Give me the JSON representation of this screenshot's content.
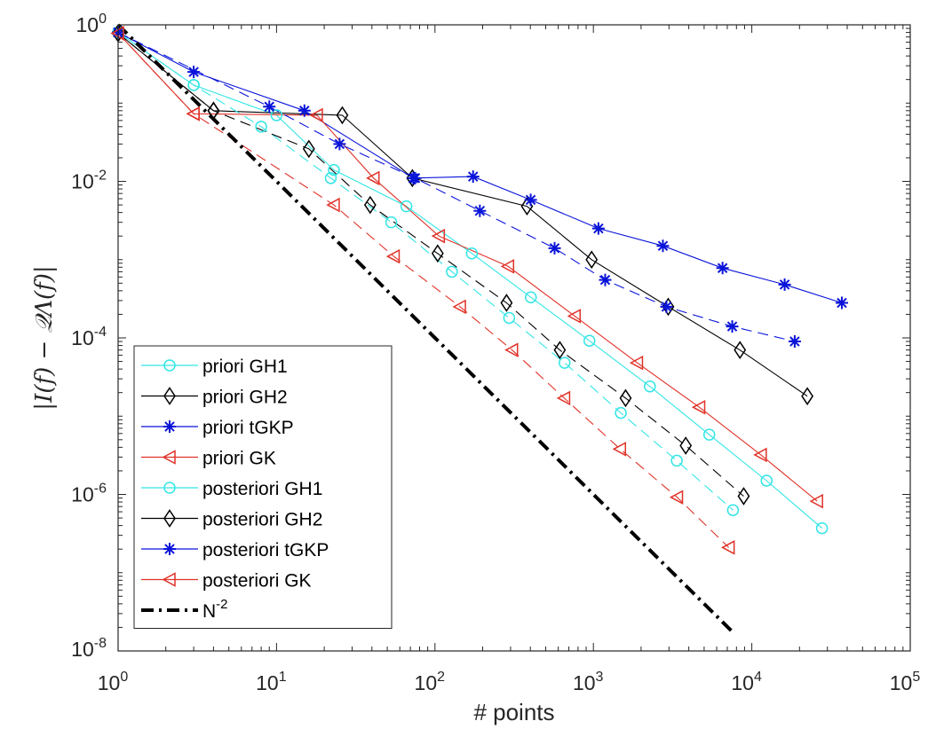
{
  "chart_data": {
    "type": "line",
    "xlabel": "# points",
    "ylabel": "|I(f) − 𝒬Λ(f)|",
    "xscale": "log",
    "yscale": "log",
    "xlim": [
      1,
      100000
    ],
    "ylim": [
      1e-08,
      1
    ],
    "grid": false,
    "legend_position": "bottom-left",
    "x_ticks": [
      {
        "value": 1,
        "base": "10",
        "exp": "0"
      },
      {
        "value": 10,
        "base": "10",
        "exp": "1"
      },
      {
        "value": 100,
        "base": "10",
        "exp": "2"
      },
      {
        "value": 1000,
        "base": "10",
        "exp": "3"
      },
      {
        "value": 10000,
        "base": "10",
        "exp": "4"
      },
      {
        "value": 100000,
        "base": "10",
        "exp": "5"
      }
    ],
    "y_ticks": [
      {
        "value": 1,
        "base": "10",
        "exp": "0"
      },
      {
        "value": 0.01,
        "base": "10",
        "exp": "-2"
      },
      {
        "value": 0.0001,
        "base": "10",
        "exp": "-4"
      },
      {
        "value": 1e-06,
        "base": "10",
        "exp": "-6"
      },
      {
        "value": 1e-08,
        "base": "10",
        "exp": "-8"
      }
    ],
    "series": [
      {
        "name": "priori GH1",
        "color": "#33e5e5",
        "marker": "circle",
        "dash": "solid",
        "x": [
          1,
          3,
          10,
          23,
          66,
          171,
          403,
          944,
          2273,
          5389,
          12397,
          27721
        ],
        "y": [
          0.8,
          0.17,
          0.07,
          0.014,
          0.0048,
          0.0012,
          0.00033,
          9.2e-05,
          2.4e-05,
          5.8e-06,
          1.5e-06,
          3.7e-07
        ]
      },
      {
        "name": "priori GH2",
        "color": "#000000",
        "marker": "diamond",
        "dash": "solid",
        "x": [
          1,
          4,
          26,
          72,
          381,
          975,
          2968,
          8414,
          22405
        ],
        "y": [
          0.78,
          0.08,
          0.07,
          0.011,
          0.0048,
          0.001,
          0.00025,
          7e-05,
          1.8e-05
        ]
      },
      {
        "name": "priori tGKP",
        "color": "#0a14d9",
        "marker": "star",
        "dash": "solid",
        "x": [
          1,
          3,
          15,
          73,
          174,
          402,
          1076,
          2746,
          6534,
          16117,
          37005
        ],
        "y": [
          0.8,
          0.25,
          0.08,
          0.011,
          0.0115,
          0.0058,
          0.0025,
          0.0015,
          0.00078,
          0.00048,
          0.00028
        ]
      },
      {
        "name": "priori GK",
        "color": "#e03228",
        "marker": "triangle-left",
        "dash": "solid",
        "x": [
          1,
          3,
          18,
          41,
          106,
          290,
          763,
          1889,
          4665,
          11413,
          25845
        ],
        "y": [
          0.78,
          0.073,
          0.07,
          0.011,
          0.002,
          0.00082,
          0.00019,
          4.8e-05,
          1.3e-05,
          3.2e-06,
          8.2e-07
        ]
      },
      {
        "name": "posteriori GH1",
        "color": "#33e5e5",
        "marker": "circle",
        "dash": "dashed",
        "x": [
          1,
          3,
          8,
          22,
          53,
          128,
          294,
          658,
          1490,
          3362,
          7604
        ],
        "y": [
          0.8,
          0.17,
          0.05,
          0.011,
          0.003,
          0.0007,
          0.00018,
          4.8e-05,
          1.1e-05,
          2.7e-06,
          6.3e-07
        ]
      },
      {
        "name": "posteriori GH2",
        "color": "#000000",
        "marker": "diamond",
        "dash": "dashed",
        "x": [
          1,
          4,
          16,
          39,
          104,
          283,
          614,
          1597,
          3827,
          8884
        ],
        "y": [
          0.78,
          0.08,
          0.026,
          0.005,
          0.0012,
          0.00028,
          7e-05,
          1.7e-05,
          4.2e-06,
          9.5e-07
        ]
      },
      {
        "name": "posteriori tGKP",
        "color": "#0a14d9",
        "marker": "star",
        "dash": "dashed",
        "x": [
          1,
          9,
          25,
          75,
          192,
          569,
          1187,
          2892,
          7522,
          18653
        ],
        "y": [
          0.8,
          0.09,
          0.03,
          0.011,
          0.0042,
          0.0014,
          0.00055,
          0.00025,
          0.00014,
          9e-05
        ]
      },
      {
        "name": "posteriori GK",
        "color": "#e03228",
        "marker": "triangle-left",
        "dash": "dashed",
        "x": [
          1,
          3,
          23,
          55,
          144,
          307,
          655,
          1474,
          3379,
          7153
        ],
        "y": [
          0.78,
          0.073,
          0.005,
          0.0011,
          0.00025,
          7e-05,
          1.7e-05,
          3.8e-06,
          9.2e-07,
          2.1e-07
        ]
      },
      {
        "name": "N",
        "name_exp": "-2",
        "color": "#000000",
        "marker": "none",
        "dash": "dashdot",
        "x": [
          1,
          7500
        ],
        "y": [
          1,
          1.78e-08
        ]
      }
    ]
  }
}
